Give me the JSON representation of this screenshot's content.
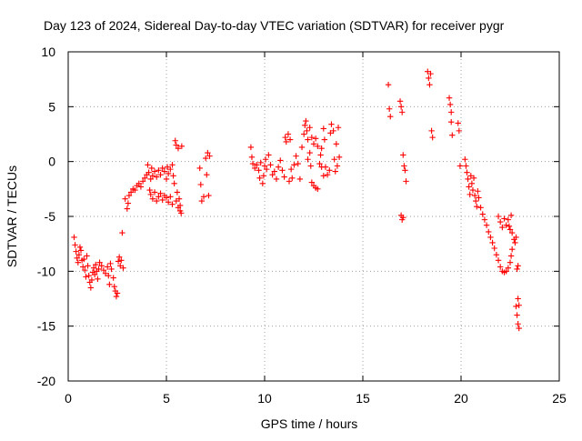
{
  "chart_data": {
    "type": "scatter",
    "title": "Day 123 of 2024, Sidereal Day-to-day VTEC variation (SDTVAR) for receiver pygr",
    "xlabel": "GPS time / hours",
    "ylabel": "SDTVAR / TECUs",
    "xlim": [
      0,
      25
    ],
    "ylim": [
      -20,
      10
    ],
    "xticks": [
      0,
      5,
      10,
      15,
      20,
      25
    ],
    "yticks": [
      -20,
      -15,
      -10,
      -5,
      0,
      5,
      10
    ],
    "grid": true,
    "marker": "+",
    "marker_color": "#ff0000",
    "series": [
      {
        "name": "SDTVAR",
        "points": [
          [
            0.3,
            -6.9
          ],
          [
            0.35,
            -7.6
          ],
          [
            0.4,
            -8.2
          ],
          [
            0.45,
            -8.8
          ],
          [
            0.5,
            -9.2
          ],
          [
            0.55,
            -8.5
          ],
          [
            0.6,
            -7.8
          ],
          [
            0.65,
            -8.1
          ],
          [
            0.7,
            -9.0
          ],
          [
            0.75,
            -9.6
          ],
          [
            0.8,
            -8.9
          ],
          [
            0.85,
            -9.9
          ],
          [
            0.9,
            -10.5
          ],
          [
            0.95,
            -8.6
          ],
          [
            1.0,
            -9.5
          ],
          [
            1.05,
            -10.4
          ],
          [
            1.1,
            -11.0
          ],
          [
            1.15,
            -11.5
          ],
          [
            1.2,
            -10.8
          ],
          [
            1.25,
            -10.1
          ],
          [
            1.3,
            -9.7
          ],
          [
            1.35,
            -10.3
          ],
          [
            1.4,
            -9.4
          ],
          [
            1.45,
            -10.0
          ],
          [
            1.5,
            -10.7
          ],
          [
            1.55,
            -9.8
          ],
          [
            1.6,
            -9.2
          ],
          [
            1.7,
            -9.5
          ],
          [
            1.8,
            -9.9
          ],
          [
            1.9,
            -10.2
          ],
          [
            2.0,
            -9.6
          ],
          [
            2.05,
            -10.4
          ],
          [
            2.1,
            -11.2
          ],
          [
            2.15,
            -9.3
          ],
          [
            2.2,
            -9.8
          ],
          [
            2.3,
            -10.6
          ],
          [
            2.35,
            -11.4
          ],
          [
            2.4,
            -11.8
          ],
          [
            2.45,
            -12.3
          ],
          [
            2.5,
            -12.0
          ],
          [
            2.55,
            -9.1
          ],
          [
            2.6,
            -8.7
          ],
          [
            2.65,
            -9.5
          ],
          [
            2.7,
            -9.0
          ],
          [
            2.75,
            -6.5
          ],
          [
            2.8,
            -9.7
          ],
          [
            2.9,
            -3.4
          ],
          [
            3.0,
            -4.3
          ],
          [
            3.05,
            -3.8
          ],
          [
            3.1,
            -3.1
          ],
          [
            3.2,
            -2.8
          ],
          [
            3.3,
            -2.5
          ],
          [
            3.4,
            -2.6
          ],
          [
            3.5,
            -2.2
          ],
          [
            3.6,
            -2.0
          ],
          [
            3.7,
            -2.3
          ],
          [
            3.8,
            -1.8
          ],
          [
            3.9,
            -1.5
          ],
          [
            4.0,
            -1.2
          ],
          [
            4.05,
            -0.3
          ],
          [
            4.1,
            -1.0
          ],
          [
            4.15,
            -2.6
          ],
          [
            4.2,
            -1.6
          ],
          [
            4.25,
            -0.6
          ],
          [
            4.3,
            -1.3
          ],
          [
            4.4,
            -0.9
          ],
          [
            4.5,
            -1.4
          ],
          [
            4.6,
            -0.8
          ],
          [
            4.7,
            -1.2
          ],
          [
            4.8,
            -0.6
          ],
          [
            4.9,
            -0.9
          ],
          [
            5.0,
            -1.6
          ],
          [
            5.05,
            -0.5
          ],
          [
            5.1,
            -1.1
          ],
          [
            5.2,
            -0.7
          ],
          [
            5.3,
            -0.3
          ],
          [
            5.35,
            -1.3
          ],
          [
            5.4,
            -2.0
          ],
          [
            5.45,
            1.9
          ],
          [
            5.5,
            1.5
          ],
          [
            5.55,
            -2.8
          ],
          [
            5.6,
            1.2
          ],
          [
            5.65,
            -3.4
          ],
          [
            5.7,
            -4.0
          ],
          [
            5.75,
            -4.7
          ],
          [
            5.78,
            1.4
          ],
          [
            4.2,
            -3.0
          ],
          [
            4.3,
            -3.4
          ],
          [
            4.4,
            -2.8
          ],
          [
            4.5,
            -3.6
          ],
          [
            4.6,
            -3.2
          ],
          [
            4.7,
            -2.9
          ],
          [
            4.8,
            -3.5
          ],
          [
            4.9,
            -3.1
          ],
          [
            5.0,
            -3.3
          ],
          [
            5.1,
            -3.7
          ],
          [
            5.2,
            -3.2
          ],
          [
            5.3,
            -3.9
          ],
          [
            5.5,
            -3.6
          ],
          [
            5.6,
            -4.2
          ],
          [
            5.7,
            -4.5
          ],
          [
            6.7,
            -0.6
          ],
          [
            6.75,
            -2.1
          ],
          [
            6.8,
            -3.6
          ],
          [
            6.9,
            -3.2
          ],
          [
            7.0,
            0.3
          ],
          [
            7.05,
            -1.2
          ],
          [
            7.1,
            0.8
          ],
          [
            7.15,
            -3.1
          ],
          [
            7.2,
            0.5
          ],
          [
            9.3,
            1.3
          ],
          [
            9.35,
            0.4
          ],
          [
            9.4,
            -0.2
          ],
          [
            9.5,
            -0.6
          ],
          [
            9.6,
            -0.3
          ],
          [
            9.7,
            -0.8
          ],
          [
            9.75,
            -1.5
          ],
          [
            9.8,
            -0.1
          ],
          [
            9.9,
            -2.0
          ],
          [
            9.95,
            -1.3
          ],
          [
            10.0,
            -0.4
          ],
          [
            10.05,
            0.2
          ],
          [
            10.1,
            -0.7
          ],
          [
            10.2,
            0.6
          ],
          [
            10.3,
            -0.3
          ],
          [
            10.4,
            -1.2
          ],
          [
            10.5,
            -0.9
          ],
          [
            10.6,
            -1.6
          ],
          [
            10.7,
            -0.5
          ],
          [
            10.8,
            0.1
          ],
          [
            10.9,
            -0.8
          ],
          [
            11.0,
            -1.4
          ],
          [
            11.05,
            2.2
          ],
          [
            11.1,
            1.8
          ],
          [
            11.2,
            2.5
          ],
          [
            11.25,
            -1.8
          ],
          [
            11.3,
            2.0
          ],
          [
            11.35,
            -0.7
          ],
          [
            11.4,
            -1.5
          ],
          [
            11.5,
            -0.3
          ],
          [
            11.6,
            0.5
          ],
          [
            11.7,
            -0.2
          ],
          [
            11.8,
            -1.6
          ],
          [
            11.9,
            1.3
          ],
          [
            12.0,
            2.5
          ],
          [
            12.05,
            3.3
          ],
          [
            12.1,
            3.7
          ],
          [
            12.15,
            2.8
          ],
          [
            12.2,
            2.0
          ],
          [
            12.3,
            0.8
          ],
          [
            12.35,
            -0.4
          ],
          [
            12.4,
            -1.9
          ],
          [
            12.5,
            -2.2
          ],
          [
            12.6,
            -2.4
          ],
          [
            12.7,
            -2.5
          ],
          [
            12.3,
            3.1
          ],
          [
            12.4,
            2.2
          ],
          [
            12.5,
            1.6
          ],
          [
            12.6,
            2.1
          ],
          [
            12.7,
            1.4
          ],
          [
            12.8,
            -0.2
          ],
          [
            12.85,
            0.6
          ],
          [
            12.9,
            1.2
          ],
          [
            13.0,
            3.0
          ],
          [
            13.05,
            2.0
          ],
          [
            13.1,
            -0.5
          ],
          [
            13.2,
            -1.2
          ],
          [
            13.3,
            -0.8
          ],
          [
            13.35,
            2.6
          ],
          [
            13.4,
            3.4
          ],
          [
            13.5,
            2.8
          ],
          [
            13.55,
            0.2
          ],
          [
            13.6,
            -0.9
          ],
          [
            13.65,
            1.6
          ],
          [
            13.7,
            -0.4
          ],
          [
            13.75,
            3.1
          ],
          [
            13.8,
            0.4
          ],
          [
            12.9,
            -0.5
          ],
          [
            13.0,
            -1.3
          ],
          [
            12.2,
            0.2
          ],
          [
            16.3,
            7.0
          ],
          [
            16.35,
            4.8
          ],
          [
            16.4,
            4.1
          ],
          [
            16.9,
            5.5
          ],
          [
            16.95,
            5.0
          ],
          [
            17.0,
            4.5
          ],
          [
            17.05,
            0.6
          ],
          [
            17.1,
            -0.4
          ],
          [
            17.15,
            -0.8
          ],
          [
            17.2,
            -1.8
          ],
          [
            16.95,
            -4.9
          ],
          [
            17.0,
            -5.3
          ],
          [
            17.05,
            -5.1
          ],
          [
            18.3,
            8.2
          ],
          [
            18.35,
            7.6
          ],
          [
            18.4,
            7.0
          ],
          [
            18.45,
            8.0
          ],
          [
            18.5,
            2.8
          ],
          [
            18.55,
            2.2
          ],
          [
            19.4,
            5.8
          ],
          [
            19.45,
            5.2
          ],
          [
            19.5,
            4.5
          ],
          [
            19.5,
            3.6
          ],
          [
            19.55,
            2.4
          ],
          [
            19.85,
            3.5
          ],
          [
            19.9,
            2.8
          ],
          [
            19.95,
            -0.4
          ],
          [
            20.2,
            0.2
          ],
          [
            20.25,
            -0.4
          ],
          [
            20.3,
            -1.0
          ],
          [
            20.35,
            -1.6
          ],
          [
            20.4,
            -2.3
          ],
          [
            20.45,
            -3.0
          ],
          [
            20.5,
            -1.3
          ],
          [
            20.55,
            -2.0
          ],
          [
            20.6,
            -2.6
          ],
          [
            20.65,
            -1.5
          ],
          [
            20.7,
            -3.1
          ],
          [
            20.75,
            -3.6
          ],
          [
            20.8,
            -4.1
          ],
          [
            20.85,
            -2.7
          ],
          [
            20.9,
            -3.3
          ],
          [
            21.0,
            -4.2
          ],
          [
            21.1,
            -4.8
          ],
          [
            21.2,
            -5.3
          ],
          [
            21.3,
            -5.8
          ],
          [
            21.4,
            -6.4
          ],
          [
            21.5,
            -6.9
          ],
          [
            21.6,
            -7.4
          ],
          [
            21.7,
            -7.9
          ],
          [
            21.8,
            -8.5
          ],
          [
            21.9,
            -9.0
          ],
          [
            22.0,
            -9.6
          ],
          [
            22.1,
            -10.0
          ],
          [
            22.2,
            -10.1
          ],
          [
            22.3,
            -10.0
          ],
          [
            22.4,
            -9.7
          ],
          [
            22.5,
            -9.2
          ],
          [
            22.55,
            -8.6
          ],
          [
            22.6,
            -8.0
          ],
          [
            21.9,
            -5.0
          ],
          [
            22.0,
            -5.5
          ],
          [
            22.1,
            -6.0
          ],
          [
            22.2,
            -5.2
          ],
          [
            22.3,
            -5.8
          ],
          [
            22.4,
            -5.3
          ],
          [
            22.45,
            -5.9
          ],
          [
            22.5,
            -6.2
          ],
          [
            22.6,
            -6.5
          ],
          [
            22.7,
            -7.1
          ],
          [
            22.75,
            -7.4
          ],
          [
            22.8,
            -6.9
          ],
          [
            22.55,
            -4.9
          ],
          [
            22.8,
            -13.2
          ],
          [
            22.85,
            -14.0
          ],
          [
            22.9,
            -14.8
          ],
          [
            22.95,
            -15.2
          ],
          [
            22.9,
            -12.5
          ],
          [
            22.95,
            -13.1
          ],
          [
            22.85,
            -9.8
          ],
          [
            22.9,
            -9.5
          ]
        ]
      }
    ]
  }
}
